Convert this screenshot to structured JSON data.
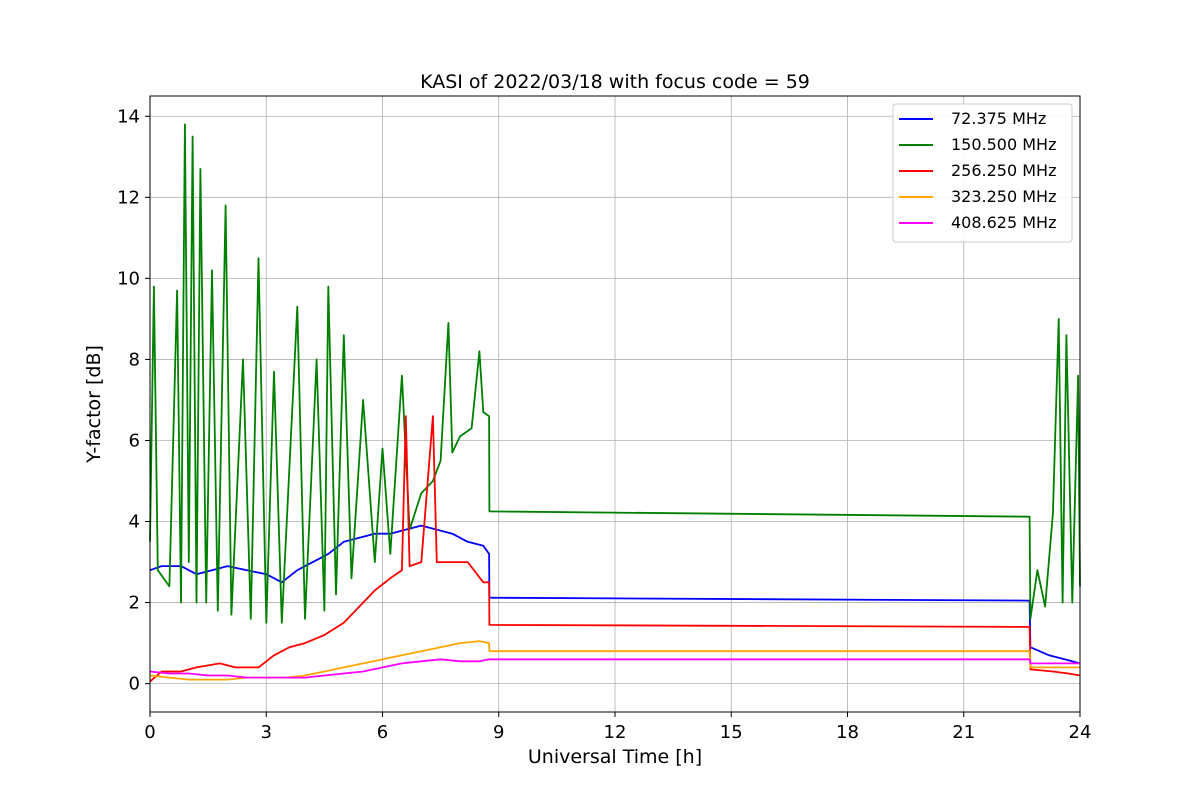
{
  "chart_data": {
    "type": "line",
    "title": "KASI of 2022/03/18 with focus code = 59",
    "xlabel": "Universal Time [h]",
    "ylabel": "Y-factor [dB]",
    "xlim": [
      0,
      24
    ],
    "ylim": [
      -0.7,
      14.5
    ],
    "xticks": [
      0,
      3,
      6,
      9,
      12,
      15,
      18,
      21,
      24
    ],
    "yticks": [
      0,
      2,
      4,
      6,
      8,
      10,
      12,
      14
    ],
    "grid": true,
    "legend_position": "top-right",
    "series": [
      {
        "name": "72.375 MHz",
        "color": "#0000ff",
        "points": [
          [
            0,
            2.8
          ],
          [
            0.3,
            2.9
          ],
          [
            0.8,
            2.9
          ],
          [
            1.2,
            2.7
          ],
          [
            1.6,
            2.8
          ],
          [
            2.0,
            2.9
          ],
          [
            2.5,
            2.8
          ],
          [
            3.0,
            2.7
          ],
          [
            3.4,
            2.5
          ],
          [
            3.8,
            2.8
          ],
          [
            4.2,
            3.0
          ],
          [
            4.6,
            3.2
          ],
          [
            5.0,
            3.5
          ],
          [
            5.4,
            3.6
          ],
          [
            5.8,
            3.7
          ],
          [
            6.2,
            3.7
          ],
          [
            6.6,
            3.8
          ],
          [
            7.0,
            3.9
          ],
          [
            7.4,
            3.8
          ],
          [
            7.8,
            3.7
          ],
          [
            8.2,
            3.5
          ],
          [
            8.6,
            3.4
          ],
          [
            8.75,
            3.2
          ],
          [
            8.76,
            2.12
          ],
          [
            22.7,
            2.05
          ],
          [
            22.72,
            0.9
          ],
          [
            23.2,
            0.7
          ],
          [
            23.6,
            0.6
          ],
          [
            24,
            0.5
          ]
        ]
      },
      {
        "name": "150.500 MHz",
        "color": "#008000",
        "points": [
          [
            0,
            3.5
          ],
          [
            0.1,
            9.8
          ],
          [
            0.2,
            2.8
          ],
          [
            0.5,
            2.4
          ],
          [
            0.7,
            9.7
          ],
          [
            0.8,
            2.0
          ],
          [
            0.9,
            13.8
          ],
          [
            1.0,
            3.0
          ],
          [
            1.1,
            13.5
          ],
          [
            1.2,
            2.0
          ],
          [
            1.3,
            12.7
          ],
          [
            1.45,
            2.0
          ],
          [
            1.6,
            10.2
          ],
          [
            1.75,
            1.8
          ],
          [
            1.95,
            11.8
          ],
          [
            2.1,
            1.7
          ],
          [
            2.4,
            8.0
          ],
          [
            2.6,
            1.6
          ],
          [
            2.8,
            10.5
          ],
          [
            3.0,
            1.5
          ],
          [
            3.2,
            7.7
          ],
          [
            3.4,
            1.5
          ],
          [
            3.8,
            9.3
          ],
          [
            4.0,
            1.6
          ],
          [
            4.3,
            8.0
          ],
          [
            4.5,
            1.8
          ],
          [
            4.6,
            9.8
          ],
          [
            4.8,
            2.2
          ],
          [
            5.0,
            8.6
          ],
          [
            5.2,
            2.6
          ],
          [
            5.5,
            7.0
          ],
          [
            5.8,
            3.0
          ],
          [
            6.0,
            5.8
          ],
          [
            6.2,
            3.2
          ],
          [
            6.5,
            7.6
          ],
          [
            6.7,
            3.8
          ],
          [
            7.0,
            4.7
          ],
          [
            7.3,
            5.0
          ],
          [
            7.5,
            5.5
          ],
          [
            7.7,
            8.9
          ],
          [
            7.8,
            5.7
          ],
          [
            8.0,
            6.1
          ],
          [
            8.3,
            6.3
          ],
          [
            8.5,
            8.2
          ],
          [
            8.6,
            6.7
          ],
          [
            8.75,
            6.6
          ],
          [
            8.76,
            4.25
          ],
          [
            22.7,
            4.12
          ],
          [
            22.72,
            1.6
          ],
          [
            22.9,
            2.8
          ],
          [
            23.1,
            1.9
          ],
          [
            23.3,
            4.2
          ],
          [
            23.45,
            9.0
          ],
          [
            23.55,
            2.0
          ],
          [
            23.65,
            8.6
          ],
          [
            23.8,
            2.0
          ],
          [
            23.95,
            7.6
          ],
          [
            24,
            2.4
          ]
        ]
      },
      {
        "name": "256.250 MHz",
        "color": "#ff0000",
        "points": [
          [
            0,
            0.05
          ],
          [
            0.3,
            0.3
          ],
          [
            0.8,
            0.3
          ],
          [
            1.2,
            0.4
          ],
          [
            1.8,
            0.5
          ],
          [
            2.2,
            0.4
          ],
          [
            2.8,
            0.4
          ],
          [
            3.2,
            0.7
          ],
          [
            3.6,
            0.9
          ],
          [
            4.0,
            1.0
          ],
          [
            4.5,
            1.2
          ],
          [
            5.0,
            1.5
          ],
          [
            5.4,
            1.9
          ],
          [
            5.8,
            2.3
          ],
          [
            6.2,
            2.6
          ],
          [
            6.5,
            2.8
          ],
          [
            6.6,
            6.6
          ],
          [
            6.7,
            2.9
          ],
          [
            7.0,
            3.0
          ],
          [
            7.3,
            6.6
          ],
          [
            7.4,
            3.0
          ],
          [
            7.8,
            3.0
          ],
          [
            8.2,
            3.0
          ],
          [
            8.6,
            2.5
          ],
          [
            8.75,
            2.5
          ],
          [
            8.76,
            1.45
          ],
          [
            22.7,
            1.4
          ],
          [
            22.72,
            0.35
          ],
          [
            23.3,
            0.3
          ],
          [
            23.7,
            0.25
          ],
          [
            24,
            0.2
          ]
        ]
      },
      {
        "name": "323.250 MHz",
        "color": "#ffa500",
        "points": [
          [
            0,
            0.2
          ],
          [
            0.5,
            0.15
          ],
          [
            1.0,
            0.1
          ],
          [
            1.5,
            0.1
          ],
          [
            2.0,
            0.1
          ],
          [
            2.5,
            0.15
          ],
          [
            3.0,
            0.15
          ],
          [
            3.5,
            0.15
          ],
          [
            4.0,
            0.2
          ],
          [
            4.5,
            0.3
          ],
          [
            5.0,
            0.4
          ],
          [
            5.5,
            0.5
          ],
          [
            6.0,
            0.6
          ],
          [
            6.5,
            0.7
          ],
          [
            7.0,
            0.8
          ],
          [
            7.5,
            0.9
          ],
          [
            8.0,
            1.0
          ],
          [
            8.5,
            1.05
          ],
          [
            8.75,
            1.0
          ],
          [
            8.76,
            0.8
          ],
          [
            22.7,
            0.8
          ],
          [
            22.72,
            0.4
          ],
          [
            23.5,
            0.4
          ],
          [
            24,
            0.4
          ]
        ]
      },
      {
        "name": "408.625 MHz",
        "color": "#ff00ff",
        "points": [
          [
            0,
            0.3
          ],
          [
            0.5,
            0.25
          ],
          [
            1.0,
            0.25
          ],
          [
            1.5,
            0.2
          ],
          [
            2.0,
            0.2
          ],
          [
            2.5,
            0.15
          ],
          [
            3.0,
            0.15
          ],
          [
            3.5,
            0.15
          ],
          [
            4.0,
            0.15
          ],
          [
            4.5,
            0.2
          ],
          [
            5.0,
            0.25
          ],
          [
            5.5,
            0.3
          ],
          [
            6.0,
            0.4
          ],
          [
            6.5,
            0.5
          ],
          [
            7.0,
            0.55
          ],
          [
            7.5,
            0.6
          ],
          [
            8.0,
            0.55
          ],
          [
            8.5,
            0.55
          ],
          [
            8.75,
            0.6
          ],
          [
            8.76,
            0.6
          ],
          [
            22.7,
            0.6
          ],
          [
            22.72,
            0.5
          ],
          [
            23.5,
            0.5
          ],
          [
            24,
            0.5
          ]
        ]
      }
    ]
  }
}
